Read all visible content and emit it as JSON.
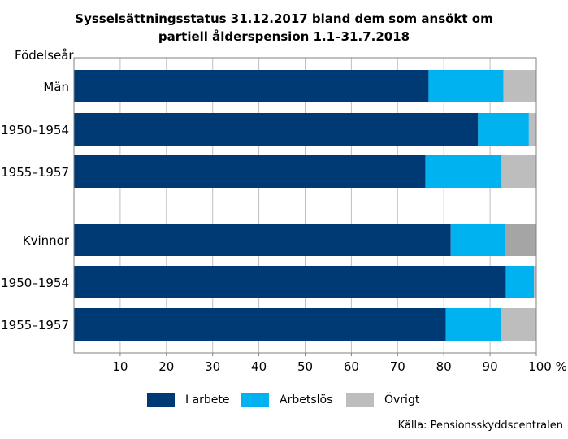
{
  "title_lines": [
    "Sysselsättningsstatus 31.12.2017 bland dem som ansökt om",
    "partiell ålderspension 1.1–31.7.2018"
  ],
  "source": "Källa: Pensionsskyddscentralen",
  "colors": {
    "i_arbete": "#003A75",
    "arbetslos": "#00B3F0",
    "ovrigt": "#BDBDBD",
    "ovrigt_total": "#A5A5A5",
    "grid": "#BFBFBF",
    "axis": "#808080"
  },
  "chart_data": {
    "type": "bar",
    "orientation": "horizontal",
    "stacked": true,
    "y_axis_title": "Födelseår",
    "x_unit": "%",
    "xlim": [
      0,
      100
    ],
    "x_ticks": [
      10,
      20,
      30,
      40,
      50,
      60,
      70,
      80,
      90,
      100
    ],
    "grid": true,
    "legend_position": "bottom",
    "categories": [
      "Män",
      "1950–1954",
      "1955–1957",
      "Kvinnor",
      "1950–1954",
      "1955–1957"
    ],
    "series": [
      {
        "name": "I arbete",
        "color_key": "i_arbete",
        "values": [
          76.7,
          87.4,
          76.0,
          81.5,
          93.4,
          80.4
        ]
      },
      {
        "name": "Arbetslös",
        "color_key": "arbetslos",
        "values": [
          16.2,
          11.0,
          16.5,
          11.7,
          6.1,
          12.0
        ]
      },
      {
        "name": "Övrigt",
        "color_key": "ovrigt",
        "values": [
          7.1,
          1.6,
          7.5,
          6.8,
          0.5,
          7.6
        ]
      }
    ]
  }
}
